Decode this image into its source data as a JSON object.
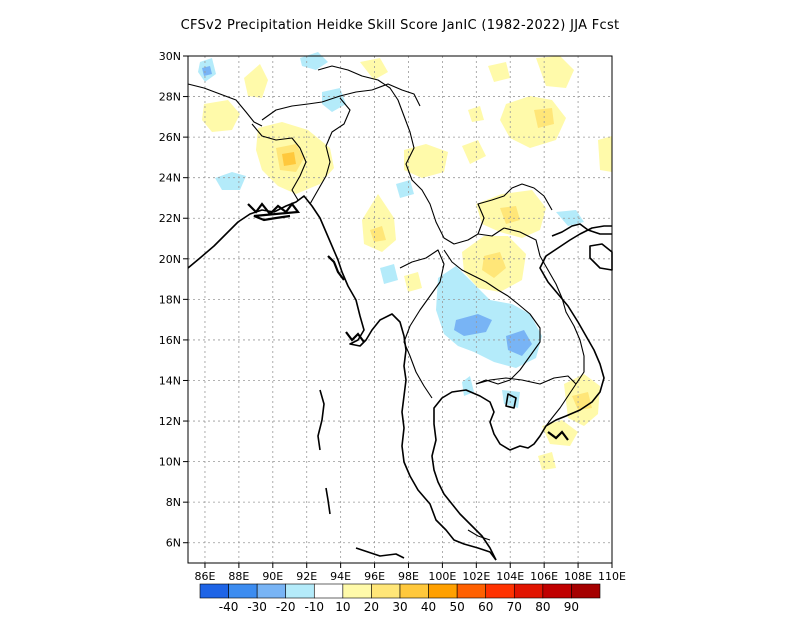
{
  "title": "CFSv2  Precipitation Heidke Skill Score JanIC (1982-2022) JJA Fcst",
  "map": {
    "lon_range": [
      85,
      110
    ],
    "lat_range": [
      5,
      30
    ],
    "lat_labels": [
      "30N",
      "28N",
      "26N",
      "24N",
      "22N",
      "20N",
      "18N",
      "16N",
      "14N",
      "12N",
      "10N",
      "8N",
      "6N"
    ],
    "lat_values": [
      30,
      28,
      26,
      24,
      22,
      20,
      18,
      16,
      14,
      12,
      10,
      8,
      6
    ],
    "lon_labels": [
      "86E",
      "88E",
      "90E",
      "92E",
      "94E",
      "96E",
      "98E",
      "100E",
      "102E",
      "104E",
      "106E",
      "108E",
      "110E"
    ],
    "lon_values": [
      86,
      88,
      90,
      92,
      94,
      96,
      98,
      100,
      102,
      104,
      106,
      108,
      110
    ],
    "gridlines": "dotted"
  },
  "colorbar": {
    "labels": [
      "-40",
      "-30",
      "-20",
      "-10",
      "10",
      "20",
      "30",
      "40",
      "50",
      "60",
      "70",
      "80",
      "90"
    ],
    "colors": [
      "#1e64e6",
      "#3c8cf0",
      "#78b4f5",
      "#b4ebfa",
      "#ffffff",
      "#fffaaa",
      "#ffe678",
      "#ffc83c",
      "#ffa000",
      "#ff6000",
      "#ff3200",
      "#e11400",
      "#c00000",
      "#a50000"
    ]
  }
}
